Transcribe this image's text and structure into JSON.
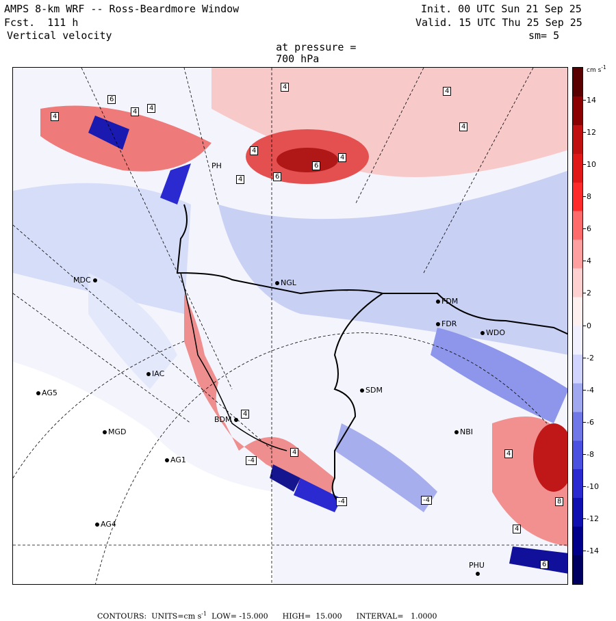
{
  "header": {
    "model_title": "AMPS 8-km WRF -- Ross-Beardmore Window",
    "forecast": "Fcst.  111 h",
    "field": "Vertical velocity",
    "init": "Init. 00 UTC Sun 21 Sep 25",
    "valid": "Valid. 15 UTC Thu 25 Sep 25",
    "pressure_prefix": "at pressure =",
    "pressure": "700 hPa",
    "smoothing": "sm= 5"
  },
  "colorbar": {
    "units_label": "cm s",
    "units_exponent": "-1",
    "ticks": [
      "14",
      "12",
      "10",
      "8",
      "6",
      "4",
      "2",
      "0",
      "-2",
      "-4",
      "-6",
      "-8",
      "-10",
      "-12",
      "-14"
    ],
    "colors": [
      "#5b0000",
      "#8b0000",
      "#c01010",
      "#e01818",
      "#ff2a2a",
      "#ff6a6a",
      "#ff9f9f",
      "#ffd0d0",
      "#fff0f0",
      "#f0f0ff",
      "#d0d4ff",
      "#a0a8f0",
      "#7078e8",
      "#4a50e0",
      "#2a2ad0",
      "#1010b0",
      "#00008b",
      "#000060"
    ]
  },
  "stations": [
    {
      "id": "MDC",
      "label": "MDC"
    },
    {
      "id": "NGL",
      "label": "NGL"
    },
    {
      "id": "FDM",
      "label": "FDM"
    },
    {
      "id": "FDR",
      "label": "FDR"
    },
    {
      "id": "WDO",
      "label": "WDO"
    },
    {
      "id": "IAC",
      "label": "IAC"
    },
    {
      "id": "AG5",
      "label": "AG5"
    },
    {
      "id": "SDM",
      "label": "SDM"
    },
    {
      "id": "BDM",
      "label": "BDM"
    },
    {
      "id": "MGD",
      "label": "MGD"
    },
    {
      "id": "NBI",
      "label": "NBI"
    },
    {
      "id": "AG1",
      "label": "AG1"
    },
    {
      "id": "AG4",
      "label": "AG4"
    },
    {
      "id": "PHU",
      "label": "PHU"
    },
    {
      "id": "PH",
      "label": "PH"
    }
  ],
  "contour_labels": [
    "4",
    "4",
    "4",
    "6",
    "4",
    "4",
    "4",
    "4",
    "6",
    "6",
    "4",
    "4",
    "4",
    "4",
    "-4",
    "-4",
    "4",
    "8",
    "4",
    "6",
    "-4"
  ],
  "footer": {
    "contours_label": "CONTOURS:",
    "units_label": "UNITS=cm s",
    "units_exponent": "-1",
    "low": "LOW= -15.000",
    "high": "HIGH=  15.000",
    "interval": "INTERVAL=   1.0000"
  }
}
